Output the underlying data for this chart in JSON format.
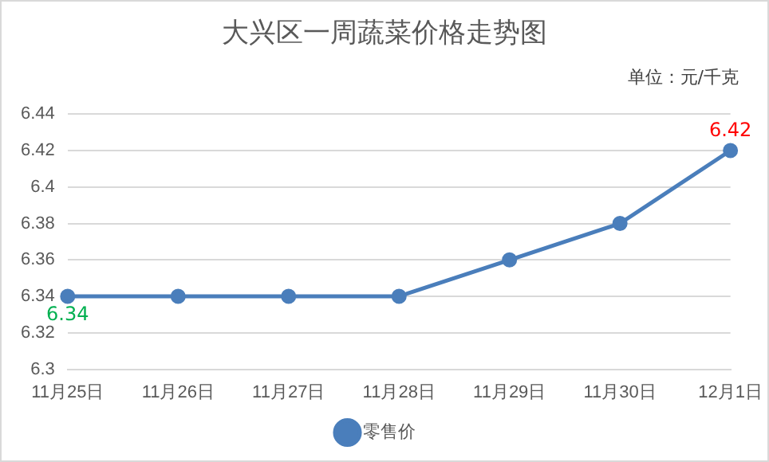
{
  "chart_data": {
    "type": "line",
    "title": "大兴区一周蔬菜价格走势图",
    "annotations": [
      "单位：元/千克"
    ],
    "categories": [
      "11月25日",
      "11月26日",
      "11月27日",
      "11月28日",
      "11月29日",
      "11月30日",
      "12月1日"
    ],
    "series": [
      {
        "name": "零售价",
        "color": "#4a7ebb",
        "values": [
          6.34,
          6.34,
          6.34,
          6.34,
          6.36,
          6.38,
          6.42
        ],
        "value_labels": [
          "6.34",
          null,
          null,
          null,
          null,
          null,
          "6.42"
        ]
      }
    ],
    "ylim": [
      6.3,
      6.44
    ],
    "yticks": [
      6.3,
      6.32,
      6.34,
      6.36,
      6.38,
      6.4,
      6.42,
      6.44
    ],
    "grid": "y",
    "legend": "bottom",
    "marker": "circle",
    "line_style": "solid"
  }
}
